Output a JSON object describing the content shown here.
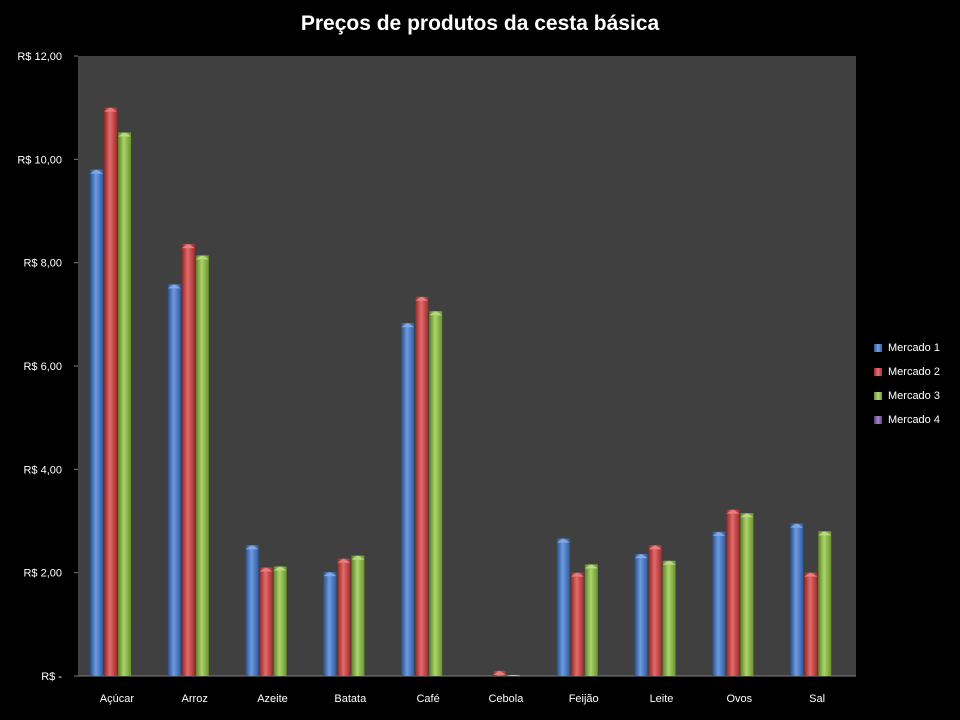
{
  "chart_data": {
    "type": "bar",
    "title": "Preços de produtos da cesta básica",
    "xlabel": "",
    "ylabel": "",
    "categories": [
      "Açúcar",
      "Arroz",
      "Azeite",
      "Batata",
      "Café",
      "Cebola",
      "Feijão",
      "Leite",
      "Ovos",
      "Sal"
    ],
    "series": [
      {
        "name": "Mercado 1",
        "color": "#3d7ad6",
        "values": [
          9.8,
          7.58,
          2.53,
          2.01,
          6.83,
          0,
          2.66,
          2.36,
          2.79,
          2.95
        ]
      },
      {
        "name": "Mercado 2",
        "color": "#d93a3a",
        "values": [
          11.0,
          8.36,
          2.1,
          2.27,
          7.34,
          0.1,
          2.0,
          2.53,
          3.22,
          2.0
        ]
      },
      {
        "name": "Mercado 3",
        "color": "#8fc63b",
        "values": [
          10.52,
          8.14,
          2.12,
          2.33,
          7.06,
          0.02,
          2.16,
          2.23,
          3.15,
          2.8
        ]
      },
      {
        "name": "Mercado 4",
        "color": "#7b52b3",
        "values": [
          0,
          0,
          0,
          0,
          0,
          0,
          0,
          0,
          0,
          0
        ]
      }
    ],
    "ylim": [
      0,
      12
    ],
    "yticks": [
      0,
      2,
      4,
      6,
      8,
      10,
      12
    ],
    "ytick_labels": [
      "R$ -",
      "R$ 2,00",
      "R$ 4,00",
      "R$ 6,00",
      "R$ 8,00",
      "R$ 10,00",
      "R$ 12,00"
    ],
    "grid": false,
    "legend_position": "right",
    "plot_background": "#404040",
    "page_background": "#000000"
  }
}
